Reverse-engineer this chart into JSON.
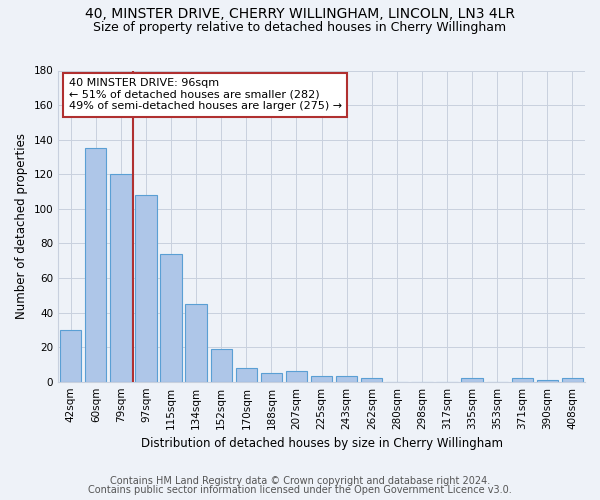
{
  "title1": "40, MINSTER DRIVE, CHERRY WILLINGHAM, LINCOLN, LN3 4LR",
  "title2": "Size of property relative to detached houses in Cherry Willingham",
  "xlabel": "Distribution of detached houses by size in Cherry Willingham",
  "ylabel": "Number of detached properties",
  "footer1": "Contains HM Land Registry data © Crown copyright and database right 2024.",
  "footer2": "Contains public sector information licensed under the Open Government Licence v3.0.",
  "categories": [
    "42sqm",
    "60sqm",
    "79sqm",
    "97sqm",
    "115sqm",
    "134sqm",
    "152sqm",
    "170sqm",
    "188sqm",
    "207sqm",
    "225sqm",
    "243sqm",
    "262sqm",
    "280sqm",
    "298sqm",
    "317sqm",
    "335sqm",
    "353sqm",
    "371sqm",
    "390sqm",
    "408sqm"
  ],
  "values": [
    30,
    135,
    120,
    108,
    74,
    45,
    19,
    8,
    5,
    6,
    3,
    3,
    2,
    0,
    0,
    0,
    2,
    0,
    2,
    1,
    2
  ],
  "bar_color": "#aec6e8",
  "bar_edge_color": "#5a9fd4",
  "vline_color": "#b03030",
  "annotation_text": "40 MINSTER DRIVE: 96sqm\n← 51% of detached houses are smaller (282)\n49% of semi-detached houses are larger (275) →",
  "annotation_box_color": "white",
  "annotation_box_edge": "#b03030",
  "ylim": [
    0,
    180
  ],
  "yticks": [
    0,
    20,
    40,
    60,
    80,
    100,
    120,
    140,
    160,
    180
  ],
  "bg_color": "#eef2f8",
  "plot_bg_color": "#eef2f8",
  "grid_color": "#c8d0de",
  "title1_fontsize": 10,
  "title2_fontsize": 9,
  "xlabel_fontsize": 8.5,
  "ylabel_fontsize": 8.5,
  "footer_fontsize": 7,
  "tick_fontsize": 7.5,
  "annot_fontsize": 8
}
